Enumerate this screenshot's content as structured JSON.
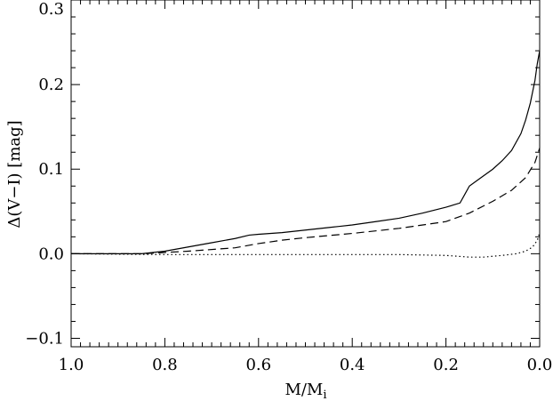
{
  "chart_data": {
    "type": "line",
    "title": "",
    "xlabel": "M/M",
    "xlabel_sub": "i",
    "ylabel": "Δ(V−I) [mag]",
    "xlim": [
      1.0,
      0.0
    ],
    "ylim": [
      -0.11,
      0.3
    ],
    "grid": false,
    "legend": "none",
    "x_ticks": [
      {
        "value": 1.0,
        "label": "1.0"
      },
      {
        "value": 0.8,
        "label": "0.8"
      },
      {
        "value": 0.6,
        "label": "0.6"
      },
      {
        "value": 0.4,
        "label": "0.4"
      },
      {
        "value": 0.2,
        "label": "0.2"
      },
      {
        "value": 0.0,
        "label": "0.0"
      }
    ],
    "y_ticks": [
      {
        "value": -0.1,
        "label": "−0.1"
      },
      {
        "value": 0.0,
        "label": "0.0"
      },
      {
        "value": 0.1,
        "label": "0.1"
      },
      {
        "value": 0.2,
        "label": "0.2"
      },
      {
        "value": 0.3,
        "label": "0.3"
      }
    ],
    "series": [
      {
        "style": "solid",
        "color": "#000000",
        "x": [
          1.0,
          0.9,
          0.85,
          0.8,
          0.75,
          0.7,
          0.65,
          0.62,
          0.6,
          0.55,
          0.5,
          0.45,
          0.4,
          0.35,
          0.3,
          0.25,
          0.2,
          0.17,
          0.16,
          0.15,
          0.13,
          0.1,
          0.08,
          0.06,
          0.04,
          0.03,
          0.02,
          0.01,
          0.005,
          0.0
        ],
        "y": [
          0.0,
          0.0,
          0.0,
          0.003,
          0.008,
          0.013,
          0.018,
          0.022,
          0.023,
          0.025,
          0.028,
          0.031,
          0.034,
          0.038,
          0.042,
          0.048,
          0.055,
          0.06,
          0.07,
          0.08,
          0.088,
          0.1,
          0.11,
          0.122,
          0.142,
          0.158,
          0.178,
          0.205,
          0.225,
          0.24
        ]
      },
      {
        "style": "dashed",
        "color": "#000000",
        "x": [
          1.0,
          0.85,
          0.75,
          0.65,
          0.6,
          0.55,
          0.5,
          0.4,
          0.3,
          0.2,
          0.15,
          0.1,
          0.06,
          0.03,
          0.01,
          0.0
        ],
        "y": [
          0.0,
          0.0,
          0.003,
          0.007,
          0.012,
          0.016,
          0.019,
          0.024,
          0.03,
          0.038,
          0.048,
          0.062,
          0.075,
          0.09,
          0.108,
          0.125
        ]
      },
      {
        "style": "dotted",
        "color": "#000000",
        "x": [
          1.0,
          0.8,
          0.6,
          0.4,
          0.3,
          0.2,
          0.15,
          0.12,
          0.08,
          0.05,
          0.03,
          0.015,
          0.005,
          0.0
        ],
        "y": [
          0.0,
          -0.001,
          -0.001,
          -0.001,
          -0.001,
          -0.002,
          -0.004,
          -0.004,
          -0.002,
          0.0,
          0.003,
          0.008,
          0.016,
          0.025
        ]
      }
    ]
  }
}
